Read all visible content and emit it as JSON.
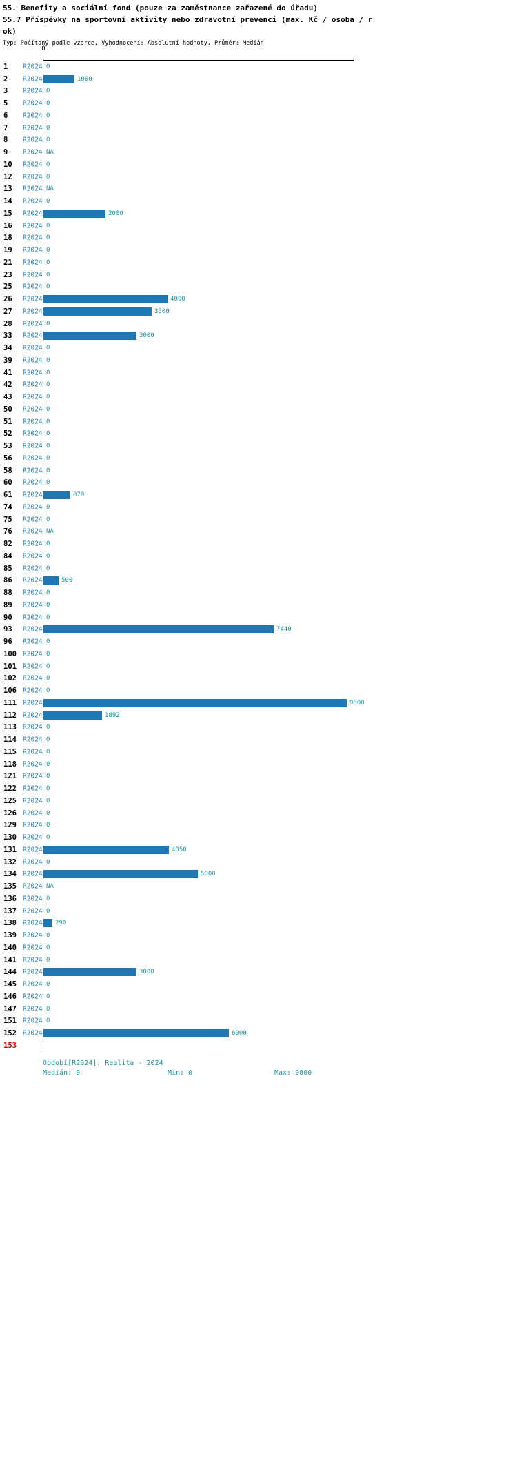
{
  "title": {
    "line1": "55. Benefity a sociální fond (pouze za zaměstnance zařazené do úřadu)",
    "line2": "55.7 Příspěvky na sportovní aktivity nebo zdravotní prevenci (max. Kč / osoba / r",
    "line3": "ok)",
    "subtitle": "Typ: Počítaný podle vzorce, Vyhodnocení: Absolutní hodnoty, Průměr: Medián"
  },
  "colors": {
    "bar": "#1f77b4",
    "series": "#1f77b4",
    "value": "#1b95a5",
    "footer": "#1b95a5",
    "highlight": "#d40000",
    "axis": "#000000"
  },
  "chart_data": {
    "type": "bar",
    "orientation": "horizontal",
    "title": "55.7 Příspěvky na sportovní aktivity nebo zdravotní prevenci (max. Kč / osoba / rok)",
    "series_name": "R2024",
    "x_tick_label": "0",
    "xlim": [
      0,
      9800
    ],
    "grid": false,
    "rows": [
      {
        "id": "1",
        "value": 0,
        "label": "0"
      },
      {
        "id": "2",
        "value": 1000,
        "label": "1000"
      },
      {
        "id": "3",
        "value": 0,
        "label": "0"
      },
      {
        "id": "5",
        "value": 0,
        "label": "0"
      },
      {
        "id": "6",
        "value": 0,
        "label": "0"
      },
      {
        "id": "7",
        "value": 0,
        "label": "0"
      },
      {
        "id": "8",
        "value": 0,
        "label": "0"
      },
      {
        "id": "9",
        "value": null,
        "label": "NA"
      },
      {
        "id": "10",
        "value": 0,
        "label": "0"
      },
      {
        "id": "12",
        "value": 0,
        "label": "0"
      },
      {
        "id": "13",
        "value": null,
        "label": "NA"
      },
      {
        "id": "14",
        "value": 0,
        "label": "0"
      },
      {
        "id": "15",
        "value": 2000,
        "label": "2000"
      },
      {
        "id": "16",
        "value": 0,
        "label": "0"
      },
      {
        "id": "18",
        "value": 0,
        "label": "0"
      },
      {
        "id": "19",
        "value": 0,
        "label": "0"
      },
      {
        "id": "21",
        "value": 0,
        "label": "0"
      },
      {
        "id": "23",
        "value": 0,
        "label": "0"
      },
      {
        "id": "25",
        "value": 0,
        "label": "0"
      },
      {
        "id": "26",
        "value": 4000,
        "label": "4000"
      },
      {
        "id": "27",
        "value": 3500,
        "label": "3500"
      },
      {
        "id": "28",
        "value": 0,
        "label": "0"
      },
      {
        "id": "33",
        "value": 3000,
        "label": "3000"
      },
      {
        "id": "34",
        "value": 0,
        "label": "0"
      },
      {
        "id": "39",
        "value": 0,
        "label": "0"
      },
      {
        "id": "41",
        "value": 0,
        "label": "0"
      },
      {
        "id": "42",
        "value": 0,
        "label": "0"
      },
      {
        "id": "43",
        "value": 0,
        "label": "0"
      },
      {
        "id": "50",
        "value": 0,
        "label": "0"
      },
      {
        "id": "51",
        "value": 0,
        "label": "0"
      },
      {
        "id": "52",
        "value": 0,
        "label": "0"
      },
      {
        "id": "53",
        "value": 0,
        "label": "0"
      },
      {
        "id": "56",
        "value": 0,
        "label": "0"
      },
      {
        "id": "58",
        "value": 0,
        "label": "0"
      },
      {
        "id": "60",
        "value": 0,
        "label": "0"
      },
      {
        "id": "61",
        "value": 870,
        "label": "870"
      },
      {
        "id": "74",
        "value": 0,
        "label": "0"
      },
      {
        "id": "75",
        "value": 0,
        "label": "0"
      },
      {
        "id": "76",
        "value": null,
        "label": "NA"
      },
      {
        "id": "82",
        "value": 0,
        "label": "0"
      },
      {
        "id": "84",
        "value": 0,
        "label": "0"
      },
      {
        "id": "85",
        "value": 0,
        "label": "0"
      },
      {
        "id": "86",
        "value": 500,
        "label": "500"
      },
      {
        "id": "88",
        "value": 0,
        "label": "0"
      },
      {
        "id": "89",
        "value": 0,
        "label": "0"
      },
      {
        "id": "90",
        "value": 0,
        "label": "0"
      },
      {
        "id": "93",
        "value": 7440,
        "label": "7440"
      },
      {
        "id": "96",
        "value": 0,
        "label": "0"
      },
      {
        "id": "100",
        "value": 0,
        "label": "0"
      },
      {
        "id": "101",
        "value": 0,
        "label": "0"
      },
      {
        "id": "102",
        "value": 0,
        "label": "0"
      },
      {
        "id": "106",
        "value": 0,
        "label": "0"
      },
      {
        "id": "111",
        "value": 9800,
        "label": "9800"
      },
      {
        "id": "112",
        "value": 1892,
        "label": "1892"
      },
      {
        "id": "113",
        "value": 0,
        "label": "0"
      },
      {
        "id": "114",
        "value": 0,
        "label": "0"
      },
      {
        "id": "115",
        "value": 0,
        "label": "0"
      },
      {
        "id": "118",
        "value": 0,
        "label": "0"
      },
      {
        "id": "121",
        "value": 0,
        "label": "0"
      },
      {
        "id": "122",
        "value": 0,
        "label": "0"
      },
      {
        "id": "125",
        "value": 0,
        "label": "0"
      },
      {
        "id": "126",
        "value": 0,
        "label": "0"
      },
      {
        "id": "129",
        "value": 0,
        "label": "0"
      },
      {
        "id": "130",
        "value": 0,
        "label": "0"
      },
      {
        "id": "131",
        "value": 4050,
        "label": "4050"
      },
      {
        "id": "132",
        "value": 0,
        "label": "0"
      },
      {
        "id": "134",
        "value": 5000,
        "label": "5000"
      },
      {
        "id": "135",
        "value": null,
        "label": "NA"
      },
      {
        "id": "136",
        "value": 0,
        "label": "0"
      },
      {
        "id": "137",
        "value": 0,
        "label": "0"
      },
      {
        "id": "138",
        "value": 290,
        "label": "290"
      },
      {
        "id": "139",
        "value": 0,
        "label": "0"
      },
      {
        "id": "140",
        "value": 0,
        "label": "0"
      },
      {
        "id": "141",
        "value": 0,
        "label": "0"
      },
      {
        "id": "144",
        "value": 3000,
        "label": "3000"
      },
      {
        "id": "145",
        "value": 0,
        "label": "0"
      },
      {
        "id": "146",
        "value": 0,
        "label": "0"
      },
      {
        "id": "147",
        "value": 0,
        "label": "0"
      },
      {
        "id": "151",
        "value": 0,
        "label": "0"
      },
      {
        "id": "152",
        "value": 6000,
        "label": "6000"
      },
      {
        "id": "153",
        "value": null,
        "label": "",
        "series": "",
        "highlight": true
      }
    ]
  },
  "footer": {
    "period": "Období[R2024]: Realita - 2024",
    "median": "Medián: 0",
    "min": "Min: 0",
    "max": "Max: 9800"
  }
}
